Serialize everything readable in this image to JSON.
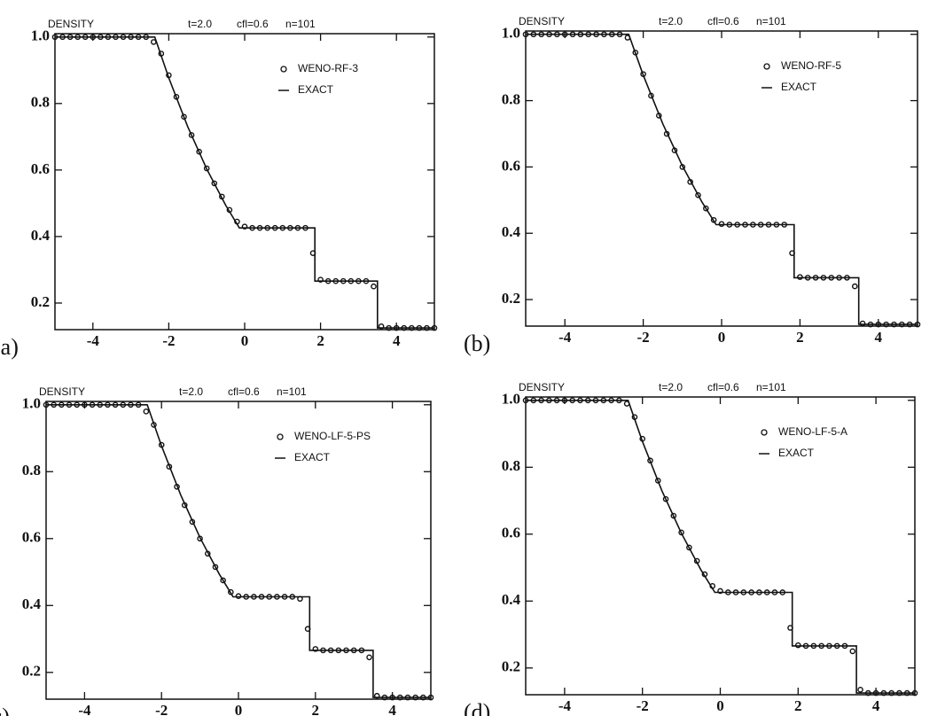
{
  "chart_data": [
    {
      "type": "line",
      "title": "DENSITY",
      "params": [
        "t=2.0",
        "cfl=0.6",
        "n=101"
      ],
      "panel_label": "(a)",
      "x": [
        -5,
        -4.8,
        -4.6,
        -4.4,
        -4.2,
        -4,
        -3.8,
        -3.6,
        -3.4,
        -3.2,
        -3,
        -2.8,
        -2.6,
        -2.4,
        -2.2,
        -2,
        -1.8,
        -1.6,
        -1.4,
        -1.2,
        -1,
        -0.8,
        -0.6,
        -0.4,
        -0.2,
        0,
        0.2,
        0.4,
        0.6,
        0.8,
        1,
        1.2,
        1.4,
        1.6,
        1.8,
        2,
        2.2,
        2.4,
        2.6,
        2.8,
        3,
        3.2,
        3.4,
        3.6,
        3.8,
        4,
        4.2,
        4.4,
        4.6,
        4.8,
        5
      ],
      "series": [
        {
          "name": "WENO-RF-3",
          "mode": "markers",
          "color": "#111111",
          "values": [
            1,
            1,
            1,
            1,
            1,
            1,
            1,
            1,
            1,
            1,
            1,
            1,
            1,
            0.985,
            0.95,
            0.885,
            0.82,
            0.76,
            0.705,
            0.655,
            0.605,
            0.56,
            0.52,
            0.48,
            0.445,
            0.43,
            0.426,
            0.426,
            0.426,
            0.426,
            0.426,
            0.426,
            0.426,
            0.426,
            0.35,
            0.27,
            0.266,
            0.266,
            0.266,
            0.266,
            0.266,
            0.266,
            0.25,
            0.13,
            0.125,
            0.125,
            0.125,
            0.125,
            0.125,
            0.125,
            0.125
          ]
        },
        {
          "name": "EXACT",
          "mode": "line",
          "color": "#111111",
          "x": [
            -5,
            -2.37,
            -2,
            -1.5,
            -1,
            -0.5,
            -0.14,
            1.85,
            1.85,
            3.5,
            3.5,
            5
          ],
          "values": [
            1,
            1,
            0.877,
            0.73,
            0.603,
            0.494,
            0.426,
            0.426,
            0.266,
            0.266,
            0.125,
            0.125
          ]
        }
      ],
      "xlim": [
        -5,
        5
      ],
      "xticks": [
        -4,
        -2,
        0,
        2,
        4
      ],
      "ylim": [
        0.12,
        1.01
      ],
      "yticks": [
        0.2,
        0.4,
        0.6,
        0.8,
        {
          "value": 1,
          "label": "1.0"
        }
      ],
      "legend": "upper right"
    },
    {
      "type": "line",
      "title": "DENSITY",
      "params": [
        "t=2.0",
        "cfl=0.6",
        "n=101"
      ],
      "panel_label": "(b)",
      "x": [
        -5,
        -4.8,
        -4.6,
        -4.4,
        -4.2,
        -4,
        -3.8,
        -3.6,
        -3.4,
        -3.2,
        -3,
        -2.8,
        -2.6,
        -2.4,
        -2.2,
        -2,
        -1.8,
        -1.6,
        -1.4,
        -1.2,
        -1,
        -0.8,
        -0.6,
        -0.4,
        -0.2,
        0,
        0.2,
        0.4,
        0.6,
        0.8,
        1,
        1.2,
        1.4,
        1.6,
        1.8,
        2,
        2.2,
        2.4,
        2.6,
        2.8,
        3,
        3.2,
        3.4,
        3.6,
        3.8,
        4,
        4.2,
        4.4,
        4.6,
        4.8,
        5
      ],
      "series": [
        {
          "name": "WENO-RF-5",
          "mode": "markers",
          "color": "#111111",
          "values": [
            1,
            1,
            1,
            1,
            1,
            1,
            1,
            1,
            1,
            1,
            1,
            1,
            1,
            0.99,
            0.945,
            0.88,
            0.815,
            0.755,
            0.7,
            0.65,
            0.6,
            0.555,
            0.515,
            0.475,
            0.44,
            0.428,
            0.426,
            0.426,
            0.426,
            0.426,
            0.426,
            0.426,
            0.426,
            0.426,
            0.34,
            0.268,
            0.266,
            0.266,
            0.266,
            0.266,
            0.266,
            0.266,
            0.24,
            0.128,
            0.125,
            0.125,
            0.125,
            0.125,
            0.125,
            0.125,
            0.125
          ]
        },
        {
          "name": "EXACT",
          "mode": "line",
          "color": "#111111",
          "x": [
            -5,
            -2.37,
            -2,
            -1.5,
            -1,
            -0.5,
            -0.14,
            1.85,
            1.85,
            3.5,
            3.5,
            5
          ],
          "values": [
            1,
            1,
            0.877,
            0.73,
            0.603,
            0.494,
            0.426,
            0.426,
            0.266,
            0.266,
            0.125,
            0.125
          ]
        }
      ],
      "xlim": [
        -5,
        5
      ],
      "xticks": [
        -4,
        -2,
        0,
        2,
        4
      ],
      "ylim": [
        0.12,
        1.01
      ],
      "yticks": [
        0.2,
        0.4,
        0.6,
        0.8,
        {
          "value": 1,
          "label": "1.0"
        }
      ],
      "legend": "upper right"
    },
    {
      "type": "line",
      "title": "DENSITY",
      "params": [
        "t=2.0",
        "cfl=0.6",
        "n=101"
      ],
      "panel_label": "(c)",
      "x": [
        -5,
        -4.8,
        -4.6,
        -4.4,
        -4.2,
        -4,
        -3.8,
        -3.6,
        -3.4,
        -3.2,
        -3,
        -2.8,
        -2.6,
        -2.4,
        -2.2,
        -2,
        -1.8,
        -1.6,
        -1.4,
        -1.2,
        -1,
        -0.8,
        -0.6,
        -0.4,
        -0.2,
        0,
        0.2,
        0.4,
        0.6,
        0.8,
        1,
        1.2,
        1.4,
        1.6,
        1.8,
        2,
        2.2,
        2.4,
        2.6,
        2.8,
        3,
        3.2,
        3.4,
        3.6,
        3.8,
        4,
        4.2,
        4.4,
        4.6,
        4.8,
        5
      ],
      "series": [
        {
          "name": "WENO-LF-5-PS",
          "mode": "markers",
          "color": "#111111",
          "values": [
            1,
            1,
            1,
            1,
            1,
            1,
            1,
            1,
            1,
            1,
            1,
            1,
            1,
            0.98,
            0.94,
            0.88,
            0.815,
            0.755,
            0.7,
            0.65,
            0.6,
            0.555,
            0.515,
            0.475,
            0.44,
            0.428,
            0.426,
            0.426,
            0.426,
            0.426,
            0.426,
            0.426,
            0.426,
            0.42,
            0.33,
            0.27,
            0.266,
            0.266,
            0.266,
            0.266,
            0.266,
            0.266,
            0.245,
            0.13,
            0.125,
            0.125,
            0.125,
            0.125,
            0.125,
            0.125,
            0.125
          ]
        },
        {
          "name": "EXACT",
          "mode": "line",
          "color": "#111111",
          "x": [
            -5,
            -2.37,
            -2,
            -1.5,
            -1,
            -0.5,
            -0.14,
            1.85,
            1.85,
            3.5,
            3.5,
            5
          ],
          "values": [
            1,
            1,
            0.877,
            0.73,
            0.603,
            0.494,
            0.426,
            0.426,
            0.266,
            0.266,
            0.125,
            0.125
          ]
        }
      ],
      "xlim": [
        -5,
        5
      ],
      "xticks": [
        -4,
        -2,
        0,
        2,
        4
      ],
      "ylim": [
        0.12,
        1.01
      ],
      "yticks": [
        0.2,
        0.4,
        0.6,
        0.8,
        {
          "value": 1,
          "label": "1.0"
        }
      ],
      "legend": "upper right"
    },
    {
      "type": "line",
      "title": "DENSITY",
      "params": [
        "t=2.0",
        "cfl=0.6",
        "n=101"
      ],
      "panel_label": "(d)",
      "x": [
        -5,
        -4.8,
        -4.6,
        -4.4,
        -4.2,
        -4,
        -3.8,
        -3.6,
        -3.4,
        -3.2,
        -3,
        -2.8,
        -2.6,
        -2.4,
        -2.2,
        -2,
        -1.8,
        -1.6,
        -1.4,
        -1.2,
        -1,
        -0.8,
        -0.6,
        -0.4,
        -0.2,
        0,
        0.2,
        0.4,
        0.6,
        0.8,
        1,
        1.2,
        1.4,
        1.6,
        1.8,
        2,
        2.2,
        2.4,
        2.6,
        2.8,
        3,
        3.2,
        3.4,
        3.6,
        3.8,
        4,
        4.2,
        4.4,
        4.6,
        4.8,
        5
      ],
      "series": [
        {
          "name": "WENO-LF-5-A",
          "mode": "markers",
          "color": "#111111",
          "values": [
            1,
            1,
            1,
            1,
            1,
            1,
            1,
            1,
            1,
            1,
            1,
            1,
            1,
            0.99,
            0.95,
            0.885,
            0.82,
            0.76,
            0.705,
            0.655,
            0.605,
            0.56,
            0.52,
            0.48,
            0.445,
            0.43,
            0.426,
            0.426,
            0.426,
            0.426,
            0.426,
            0.426,
            0.426,
            0.426,
            0.32,
            0.268,
            0.266,
            0.266,
            0.266,
            0.266,
            0.266,
            0.266,
            0.25,
            0.135,
            0.125,
            0.125,
            0.125,
            0.125,
            0.125,
            0.125,
            0.125
          ]
        },
        {
          "name": "EXACT",
          "mode": "line",
          "color": "#111111",
          "x": [
            -5,
            -2.37,
            -2,
            -1.5,
            -1,
            -0.5,
            -0.14,
            1.85,
            1.85,
            3.5,
            3.5,
            5
          ],
          "values": [
            1,
            1,
            0.877,
            0.73,
            0.603,
            0.494,
            0.426,
            0.426,
            0.266,
            0.266,
            0.125,
            0.125
          ]
        }
      ],
      "xlim": [
        -5,
        5
      ],
      "xticks": [
        -4,
        -2,
        0,
        2,
        4
      ],
      "ylim": [
        0.12,
        1.01
      ],
      "yticks": [
        0.2,
        0.4,
        0.6,
        0.8,
        {
          "value": 1,
          "label": "1.0"
        }
      ],
      "legend": "upper right"
    }
  ]
}
